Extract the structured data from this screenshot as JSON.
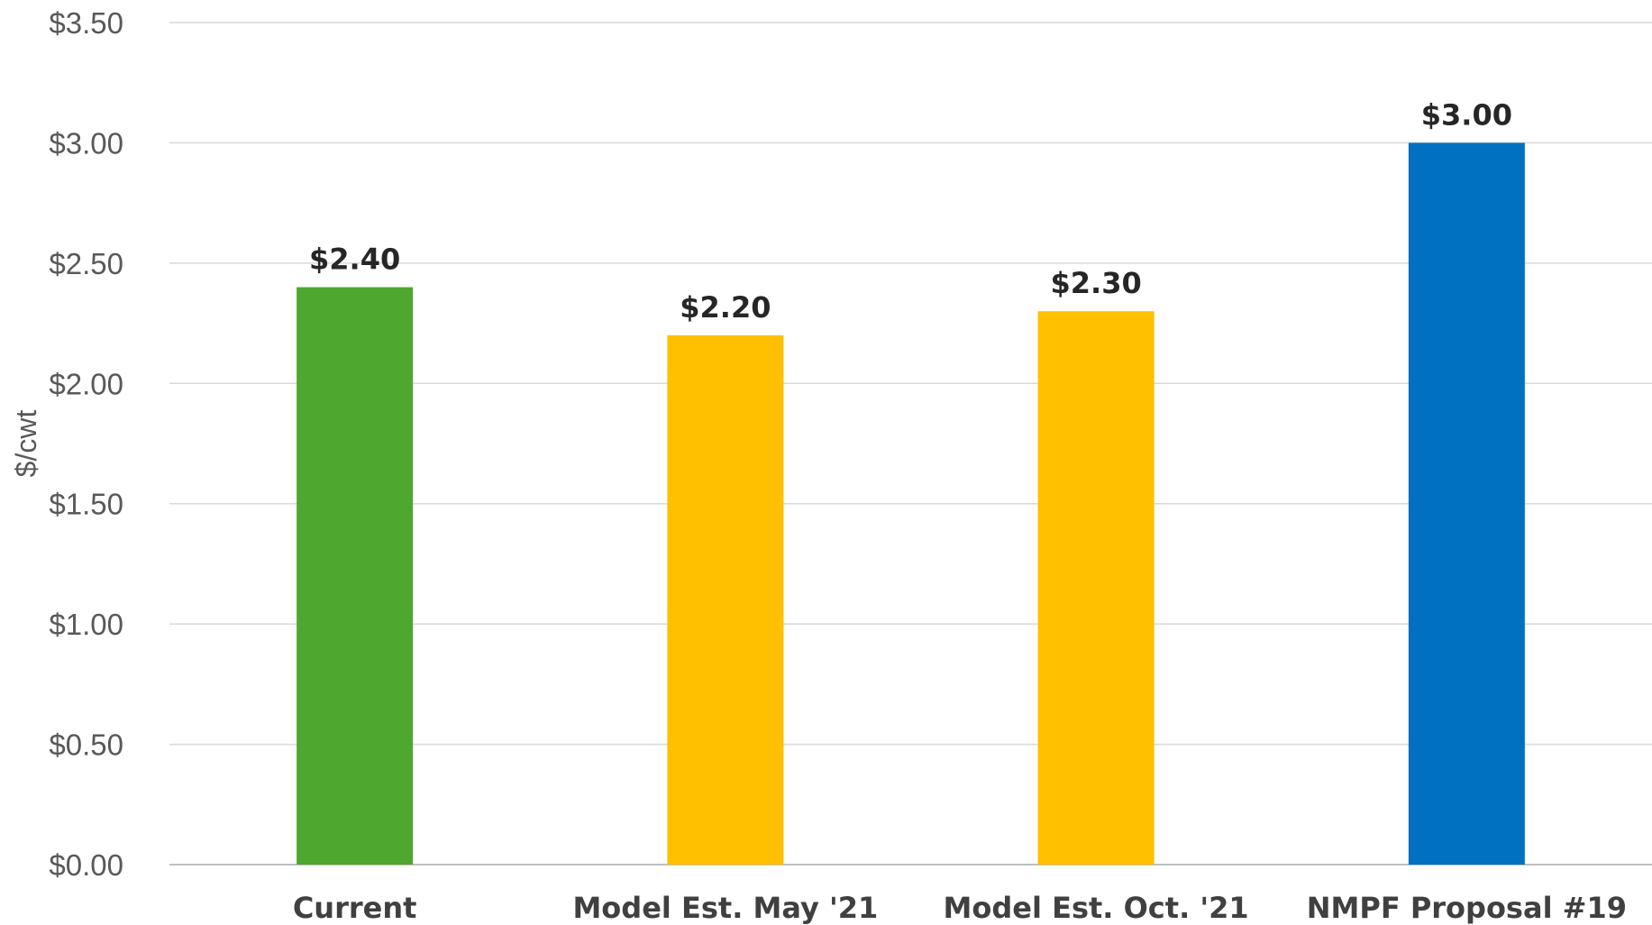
{
  "chart_data": {
    "type": "bar",
    "title": "",
    "xlabel": "",
    "ylabel": "$/cwt",
    "ylim": [
      0,
      3.5
    ],
    "yticks": [
      0,
      0.5,
      1,
      1.5,
      2,
      2.5,
      3,
      3.5
    ],
    "ytick_labels": [
      "$0.00",
      "$0.50",
      "$1.00",
      "$1.50",
      "$2.00",
      "$2.50",
      "$3.00",
      "$3.50"
    ],
    "grid": true,
    "categories": [
      "Current",
      "Model Est. May '21",
      "Model Est. Oct. '21",
      "NMPF Proposal #19"
    ],
    "values": [
      2.4,
      2.2,
      2.3,
      3.0
    ],
    "data_labels": [
      "$2.40",
      "$2.20",
      "$2.30",
      "$3.00"
    ],
    "colors": [
      "#4ea72e",
      "#ffc000",
      "#ffc000",
      "#0070c0"
    ]
  }
}
